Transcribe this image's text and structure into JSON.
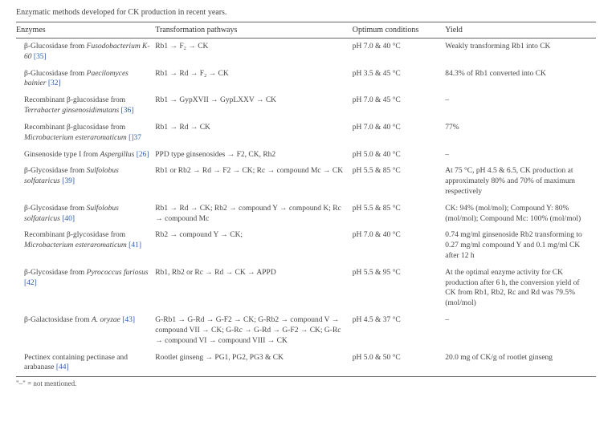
{
  "caption": "Enzymatic methods developed for CK production in recent years.",
  "columns": [
    "Enzymes",
    "Transformation pathways",
    "Optimum conditions",
    "Yield"
  ],
  "rows": [
    {
      "enzymePrefix": "β-Glucosidase from ",
      "organism": "Fusodobacterium K-60",
      "ref": "[35]",
      "pathway": "Rb1 → F₂ → CK",
      "conditions": "pH 7.0 & 40 °C",
      "yield": "Weakly transforming Rb1 into CK"
    },
    {
      "enzymePrefix": "β-Glucosidase from ",
      "organism": "Paecilomyces bainier",
      "ref": "[32]",
      "pathway": "Rb1 → Rd → F₂ → CK",
      "conditions": "pH 3.5 & 45 °C",
      "yield": "84.3% of Rb1 converted into CK"
    },
    {
      "enzymePrefix": "Recombinant β-glucosidase from ",
      "organism": "Terrabacter ginsenosidimutans",
      "ref": "[36]",
      "pathway": "Rb1 → GypXVII → GypLXXV → CK",
      "conditions": "pH 7.0 & 45 °C",
      "yield": "–"
    },
    {
      "enzymePrefix": "Recombinant β-glucosidase from ",
      "organism": "Microbacterium esteraromaticum",
      "ref": "[]37",
      "pathway": "Rb1 → Rd → CK",
      "conditions": "pH 7.0 & 40 °C",
      "yield": "77%"
    },
    {
      "enzymePrefix": "Ginsenoside type I from ",
      "organism": "Aspergillus",
      "ref": "[26]",
      "pathway": "PPD type ginsenosides → F2, CK, Rh2",
      "conditions": "pH 5.0 & 40 °C",
      "yield": "–"
    },
    {
      "enzymePrefix": "β-Glycosidase from ",
      "organism": "Sulfolobus solfataricus",
      "ref": "[39]",
      "pathway": "Rb1 or Rb2 → Rd → F2 → CK; Rc → compound Mc → CK",
      "conditions": "pH 5.5 & 85 °C",
      "yield": "At 75 °C, pH 4.5 & 6.5, CK production at approximately 80% and 70% of maximum respectively"
    },
    {
      "enzymePrefix": "β-Glycosidase from ",
      "organism": "Sulfolobus solfataricus",
      "ref": "[40]",
      "pathway": "Rb1 → Rd → CK; Rb2 → compound Y → compound K; Rc → compound Mc",
      "conditions": "pH 5.5 & 85 °C",
      "yield": "CK: 94% (mol/mol); Compound Y: 80% (mol/mol); Compound Mc: 100% (mol/mol)"
    },
    {
      "enzymePrefix": "Recombinant β-glycosidase from ",
      "organism": "Microbacterium esteraromaticum",
      "ref": "[41]",
      "pathway": "Rb2 → compound Y → CK;",
      "conditions": "pH 7.0 & 40 °C",
      "yield": "0.74 mg/ml ginsenoside Rb2 transforming to 0.27 mg/ml compound Y and 0.1 mg/ml CK after 12 h"
    },
    {
      "enzymePrefix": "β-Glycosidase from ",
      "organism": "Pyrococcus furiosus",
      "ref": "[42]",
      "pathway": "Rb1, Rb2 or Rc → Rd → CK → APPD",
      "conditions": "pH 5.5 & 95 °C",
      "yield": "At the optimal enzyme activity for CK production after 6 h, the conversion yield of CK from Rb1, Rb2, Rc and Rd was 79.5% (mol/mol)"
    },
    {
      "enzymePrefix": "β-Galactosidase from ",
      "organism": "A. oryzae",
      "ref": "[43]",
      "pathway": "G-Rb1 → G-Rd → G-F2 → CK; G-Rb2 → compound V → compound VII → CK; G-Rc → G-Rd → G-F2 → CK; G-Rc → compound VI → compound VIII → CK",
      "conditions": "pH 4.5 & 37 °C",
      "yield": "–"
    },
    {
      "enzymePrefix": "Pectinex containing pectinase and arabanase",
      "organism": "",
      "ref": "[44]",
      "pathway": "Rootlet ginseng → PG1, PG2, PG3 & CK",
      "conditions": "pH 5.0 & 50 °C",
      "yield": "20.0 mg of CK/g of rootlet ginseng"
    }
  ],
  "footnote": "\"–\" = not mentioned."
}
